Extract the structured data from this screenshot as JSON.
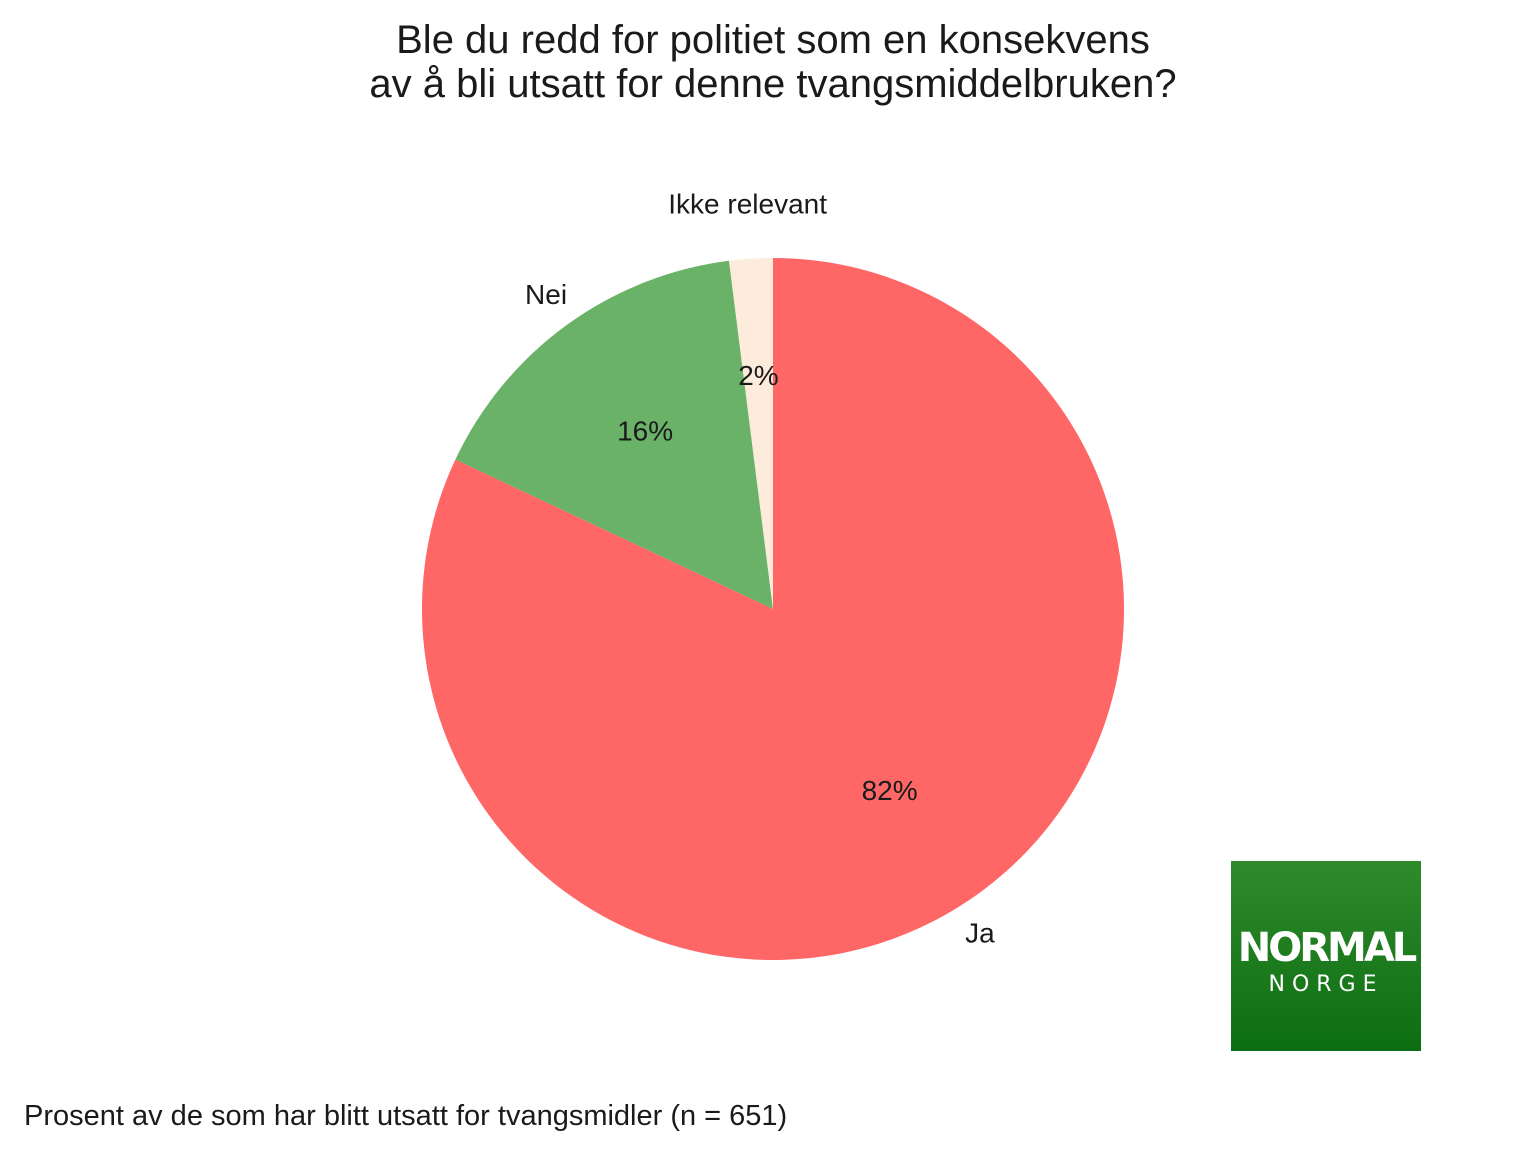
{
  "chart_data": {
    "type": "pie",
    "title_lines": [
      "Ble du redd for politiet som en konsekvens",
      "av å bli utsatt for denne tvangsmiddelbruken?"
    ],
    "slices": [
      {
        "label": "Ja",
        "value": 82,
        "value_label": "82%",
        "color": "#ff6666"
      },
      {
        "label": "Nei",
        "value": 16,
        "value_label": "16%",
        "color": "#6ab267"
      },
      {
        "label": "Ikke relevant",
        "value": 2,
        "value_label": "2%",
        "color": "#fdebdb"
      }
    ],
    "start": "12 o'clock",
    "direction": "clockwise"
  },
  "caption": "Prosent av de som har blitt utsatt for tvangsmidler (n = 651)",
  "logo": {
    "line1": "NORMAL",
    "line2": "NORGE",
    "background": "#1a7d1f"
  }
}
